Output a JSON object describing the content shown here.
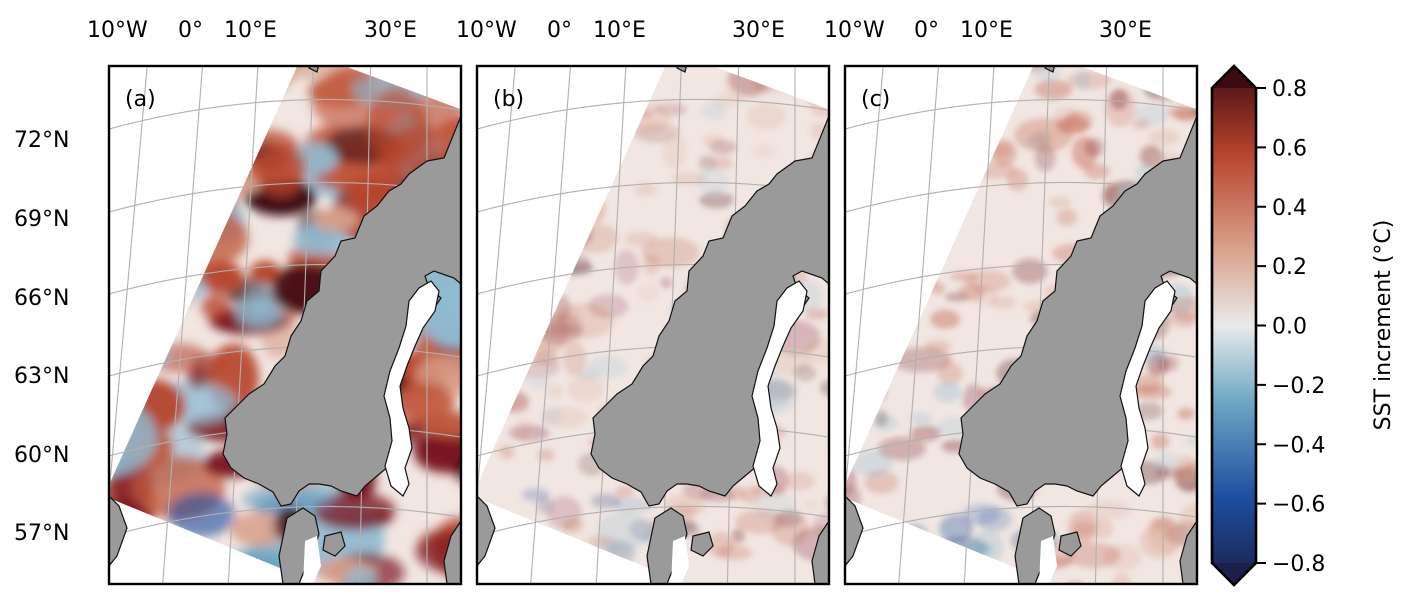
{
  "lon_labels": [
    "10°W",
    "0°",
    "10°E",
    "30°E"
  ],
  "lat_labels": [
    "72°N",
    "69°N",
    "66°N",
    "63°N",
    "60°N",
    "57°N"
  ],
  "panels": [
    {
      "label": "(a)",
      "intensity": 1.0
    },
    {
      "label": "(b)",
      "intensity": 0.25
    },
    {
      "label": "(c)",
      "intensity": 0.35
    }
  ],
  "colorbar": {
    "label": "SST increment (°C)",
    "ticks": [
      "0.8",
      "0.6",
      "0.4",
      "0.2",
      "0.0",
      "−0.2",
      "−0.4",
      "−0.6",
      "−0.8"
    ],
    "tick_values": [
      0.8,
      0.6,
      0.4,
      0.2,
      0.0,
      -0.2,
      -0.4,
      -0.6,
      -0.8
    ],
    "range": [
      -0.8,
      0.8
    ],
    "colors": [
      "#1b1f4a",
      "#1d4fa0",
      "#6aa6c4",
      "#e9eaea",
      "#d9a08a",
      "#b8442c",
      "#3d0a12"
    ]
  }
}
